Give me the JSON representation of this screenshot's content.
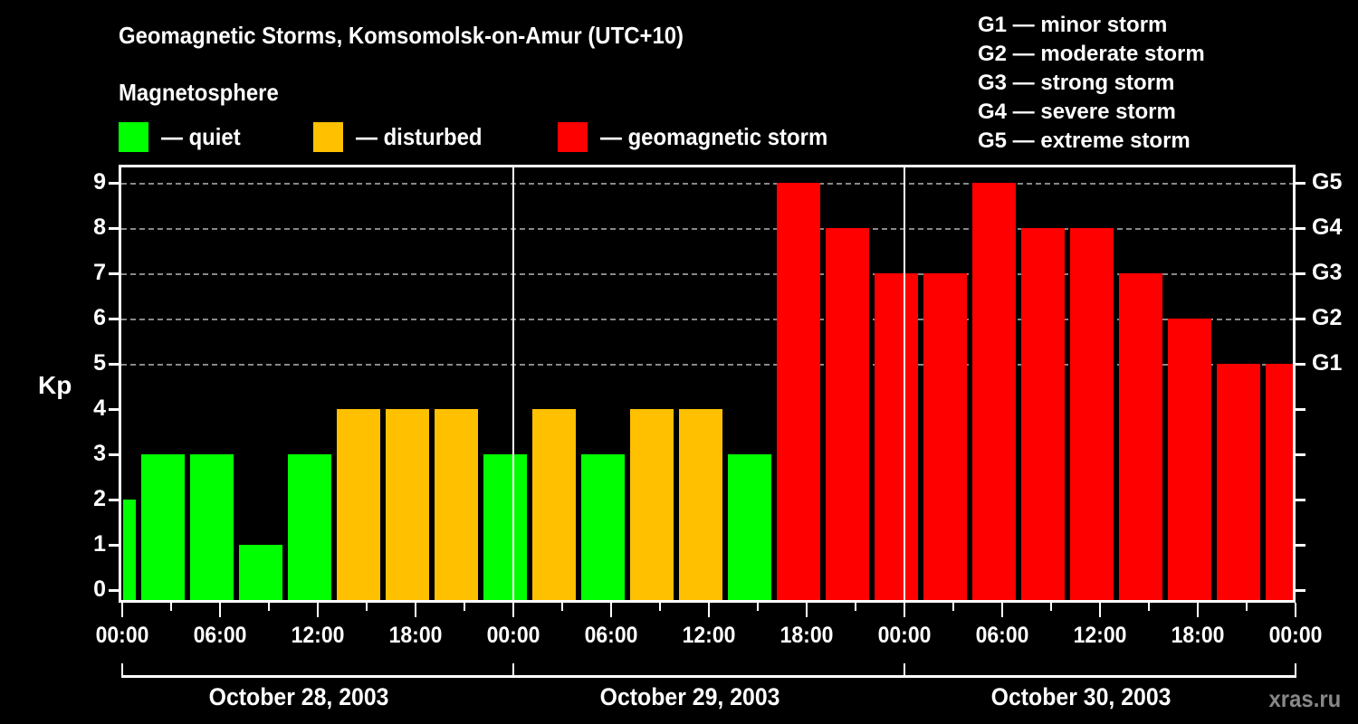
{
  "header": {
    "title": "Geomagnetic Storms, Komsomolsk-on-Amur (UTC+10)",
    "subtitle": "Magnetosphere"
  },
  "legend": [
    {
      "label": "— quiet",
      "color": "#00FF00"
    },
    {
      "label": "— disturbed",
      "color": "#FFC000"
    },
    {
      "label": "— geomagnetic storm",
      "color": "#FF0000"
    }
  ],
  "g_scale": [
    "G1 — minor storm",
    "G2 — moderate storm",
    "G3 — strong storm",
    "G4 — severe storm",
    "G5 — extreme storm"
  ],
  "watermark": "xras.ru",
  "chart_data": {
    "type": "bar",
    "title": "Geomagnetic Storms, Komsomolsk-on-Amur (UTC+10)",
    "ylabel": "Kp",
    "xlabel": "",
    "ylim": [
      0,
      9
    ],
    "y_ticks": [
      "0",
      "1",
      "2",
      "3",
      "4",
      "5",
      "6",
      "7",
      "8",
      "9"
    ],
    "y2_ticks": {
      "5": "G1",
      "6": "G2",
      "7": "G3",
      "8": "G4",
      "9": "G5"
    },
    "x_tick_labels": [
      "00:00",
      "06:00",
      "12:00",
      "18:00",
      "00:00",
      "06:00",
      "12:00",
      "18:00",
      "00:00",
      "06:00",
      "12:00",
      "18:00",
      "00:00"
    ],
    "date_labels": [
      "October 28, 2003",
      "October 29, 2003",
      "October 30, 2003"
    ],
    "interval_hours": 3,
    "grid": "dashed horizontal at Kp 5-9",
    "categories": [
      "Oct 28 00:00",
      "Oct 28 03:00",
      "Oct 28 06:00",
      "Oct 28 09:00",
      "Oct 28 12:00",
      "Oct 28 15:00",
      "Oct 28 18:00",
      "Oct 28 21:00",
      "Oct 29 00:00",
      "Oct 29 03:00",
      "Oct 29 06:00",
      "Oct 29 09:00",
      "Oct 29 12:00",
      "Oct 29 15:00",
      "Oct 29 18:00",
      "Oct 29 21:00",
      "Oct 30 00:00",
      "Oct 30 03:00",
      "Oct 30 06:00",
      "Oct 30 09:00",
      "Oct 30 12:00",
      "Oct 30 15:00",
      "Oct 30 18:00",
      "Oct 30 21:00",
      "Oct 31 00:00"
    ],
    "values": [
      2,
      3,
      3,
      1,
      3,
      4,
      4,
      4,
      3,
      4,
      3,
      4,
      4,
      3,
      9,
      8,
      7,
      7,
      9,
      8,
      8,
      7,
      6,
      5,
      5
    ],
    "status": [
      "quiet",
      "quiet",
      "quiet",
      "quiet",
      "quiet",
      "disturbed",
      "disturbed",
      "disturbed",
      "quiet",
      "disturbed",
      "quiet",
      "disturbed",
      "disturbed",
      "quiet",
      "storm",
      "storm",
      "storm",
      "storm",
      "storm",
      "storm",
      "storm",
      "storm",
      "storm",
      "storm",
      "storm"
    ],
    "colors": {
      "quiet": "#00FF00",
      "disturbed": "#FFC000",
      "storm": "#FF0000"
    }
  }
}
